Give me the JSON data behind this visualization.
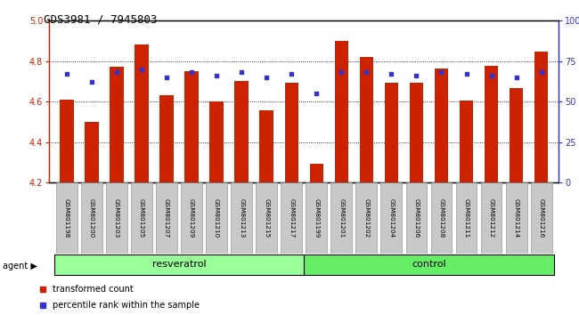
{
  "title": "GDS3981 / 7945803",
  "samples": [
    "GSM801198",
    "GSM801200",
    "GSM801203",
    "GSM801205",
    "GSM801207",
    "GSM801209",
    "GSM801210",
    "GSM801213",
    "GSM801215",
    "GSM801217",
    "GSM801199",
    "GSM801201",
    "GSM801202",
    "GSM801204",
    "GSM801206",
    "GSM801208",
    "GSM801211",
    "GSM801212",
    "GSM801214",
    "GSM801216"
  ],
  "bar_values": [
    4.61,
    4.5,
    4.77,
    4.88,
    4.63,
    4.75,
    4.6,
    4.7,
    4.555,
    4.695,
    4.295,
    4.9,
    4.82,
    4.695,
    4.695,
    4.765,
    4.605,
    4.775,
    4.665,
    4.845
  ],
  "percentile_values": [
    67,
    62,
    68,
    70,
    65,
    68,
    66,
    68,
    65,
    67,
    55,
    68,
    68,
    67,
    66,
    68,
    67,
    66,
    65,
    68
  ],
  "group_labels": [
    "resveratrol",
    "control"
  ],
  "group_counts": [
    10,
    10
  ],
  "y_min": 4.2,
  "y_max": 5.0,
  "y_ticks": [
    4.2,
    4.4,
    4.6,
    4.8,
    5.0
  ],
  "y2_ticks": [
    0,
    25,
    50,
    75,
    100
  ],
  "y2_labels": [
    "0",
    "25",
    "50",
    "75",
    "100%"
  ],
  "bar_color": "#CC2200",
  "dot_color": "#3333CC",
  "grid_color": "#000000",
  "background_color": "#ffffff",
  "sample_bg": "#C8C8C8",
  "resveratrol_bg": "#99FF99",
  "control_bg": "#66EE66",
  "agent_label": "agent",
  "legend_bar": "transformed count",
  "legend_dot": "percentile rank within the sample",
  "title_fontsize": 9,
  "tick_fontsize": 7,
  "label_fontsize": 7.5
}
